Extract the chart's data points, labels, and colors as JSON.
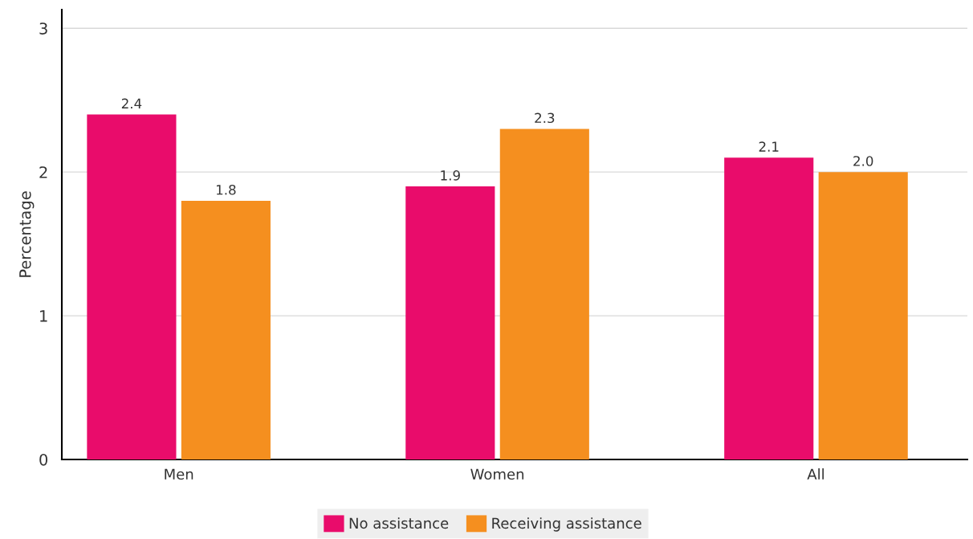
{
  "chart_data": {
    "type": "bar",
    "ylabel": "Percentage",
    "categories": [
      "Men",
      "Women",
      "All"
    ],
    "series": [
      {
        "name": "No assistance",
        "color": "#e90c6b",
        "values": [
          2.4,
          1.9,
          2.1
        ],
        "value_labels": [
          "2.4",
          "1.9",
          "2.1"
        ]
      },
      {
        "name": "Receiving assistance",
        "color": "#f58f1f",
        "values": [
          1.8,
          2.3,
          2.0
        ],
        "value_labels": [
          "1.8",
          "2.3",
          "2.0"
        ]
      }
    ],
    "ylim": [
      0,
      3.13
    ],
    "yticks": [
      0,
      1,
      2,
      3
    ],
    "grid": "y",
    "legend": "bottom"
  }
}
